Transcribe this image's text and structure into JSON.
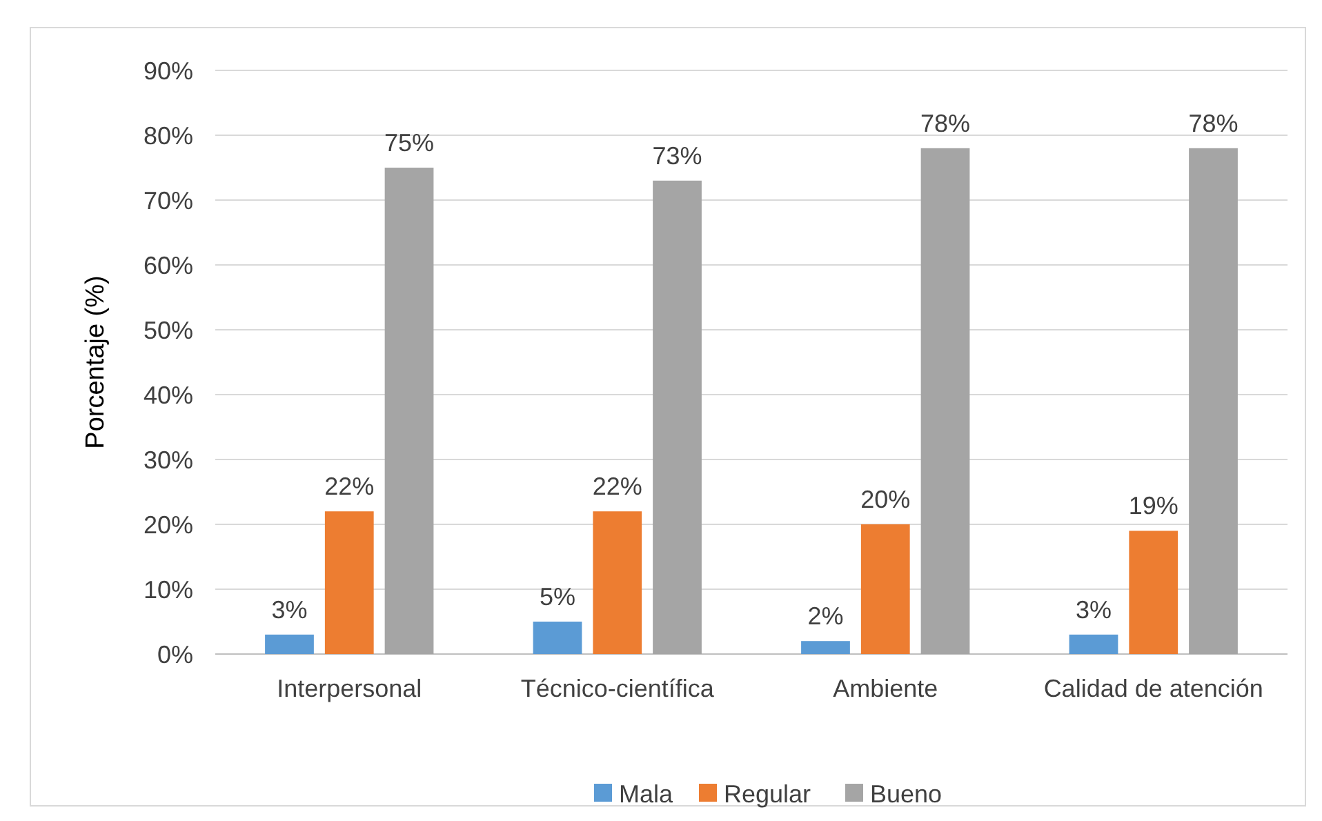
{
  "chart_data": {
    "type": "bar",
    "ylabel": "Porcentaje (%)",
    "categories": [
      "Interpersonal",
      "Técnico-científica",
      "Ambiente",
      "Calidad de atención"
    ],
    "series": [
      {
        "name": "Mala",
        "color": "#5b9bd5",
        "values": [
          3,
          5,
          2,
          3
        ],
        "value_labels": [
          "3%",
          "5%",
          "2%",
          "3%"
        ]
      },
      {
        "name": "Regular",
        "color": "#ed7d31",
        "values": [
          22,
          22,
          20,
          19
        ],
        "value_labels": [
          "22%",
          "22%",
          "20%",
          "19%"
        ]
      },
      {
        "name": "Bueno",
        "color": "#a5a5a5",
        "values": [
          75,
          73,
          78,
          78
        ],
        "value_labels": [
          "75%",
          "73%",
          "78%",
          "78%"
        ]
      }
    ],
    "ylim": [
      0,
      90
    ],
    "yticks": [
      {
        "value": 0,
        "label": "0%"
      },
      {
        "value": 10,
        "label": "10%"
      },
      {
        "value": 20,
        "label": "20%"
      },
      {
        "value": 30,
        "label": "30%"
      },
      {
        "value": 40,
        "label": "40%"
      },
      {
        "value": 50,
        "label": "50%"
      },
      {
        "value": 60,
        "label": "60%"
      },
      {
        "value": 70,
        "label": "70%"
      },
      {
        "value": 80,
        "label": "80%"
      },
      {
        "value": 90,
        "label": "90%"
      }
    ],
    "grid": "y",
    "legend": "bottom"
  }
}
